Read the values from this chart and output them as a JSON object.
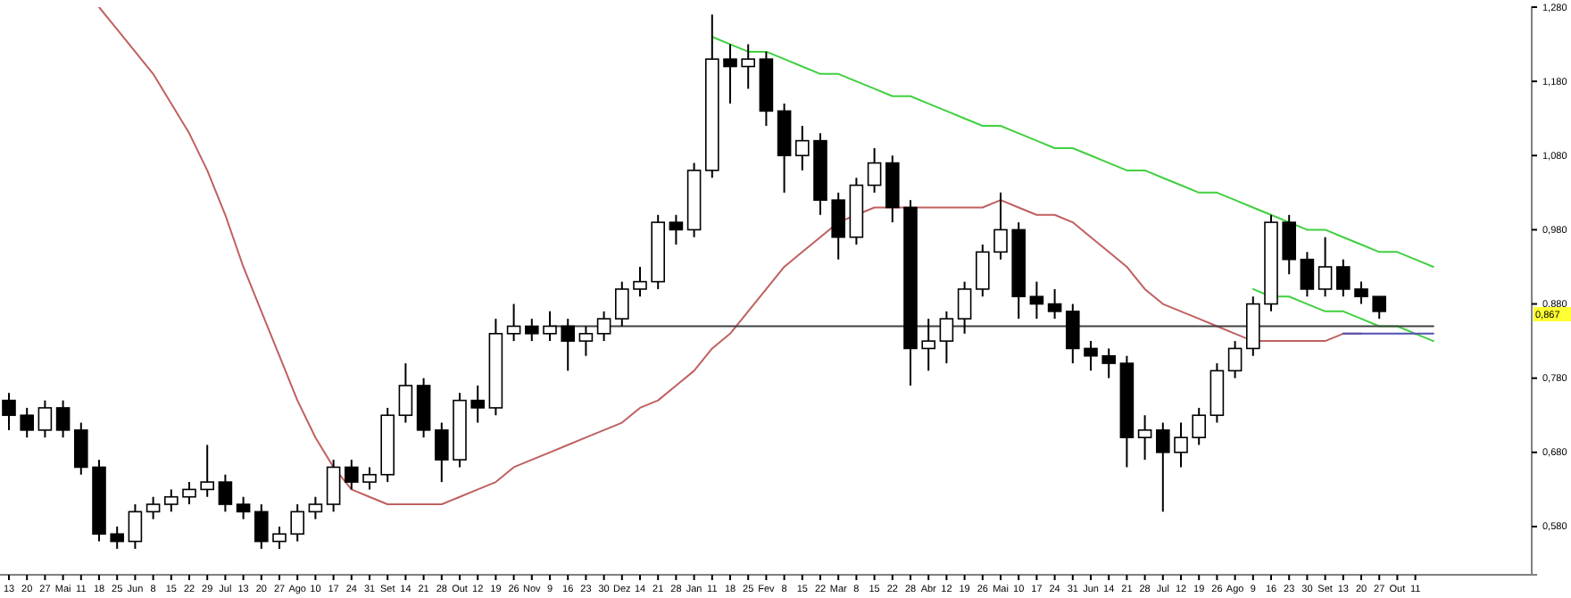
{
  "chart_data": {
    "type": "candlestick",
    "ylim": [
      0.515,
      1.28
    ],
    "yticks": [
      {
        "value": 0.58,
        "label": "0,580"
      },
      {
        "value": 0.68,
        "label": "0,680"
      },
      {
        "value": 0.78,
        "label": "0,780"
      },
      {
        "value": 0.88,
        "label": "0,880"
      },
      {
        "value": 0.98,
        "label": "0,980"
      },
      {
        "value": 1.08,
        "label": "1,080"
      },
      {
        "value": 1.18,
        "label": "1,180"
      },
      {
        "value": 1.28,
        "label": "1,280"
      }
    ],
    "categories": [
      "13",
      "20",
      "27",
      "Mai",
      "11",
      "18",
      "25",
      "Jun",
      "8",
      "15",
      "22",
      "29",
      "Jul",
      "13",
      "20",
      "27",
      "Ago",
      "10",
      "17",
      "24",
      "31",
      "Set",
      "14",
      "21",
      "28",
      "Out",
      "12",
      "19",
      "26",
      "Nov",
      "9",
      "16",
      "23",
      "30",
      "Dez",
      "14",
      "21",
      "28",
      "Jan",
      "11",
      "18",
      "25",
      "Fev",
      "8",
      "15",
      "22",
      "Mar",
      "8",
      "15",
      "22",
      "28",
      "Abr",
      "12",
      "19",
      "26",
      "Mai",
      "10",
      "17",
      "24",
      "31",
      "Jun",
      "14",
      "21",
      "28",
      "Jul",
      "12",
      "19",
      "26",
      "Ago",
      "9",
      "16",
      "23",
      "30",
      "Set",
      "13",
      "20",
      "27",
      "Out",
      "11",
      null,
      null,
      null,
      null,
      null,
      null
    ],
    "color": "#000000",
    "ohlc": [
      [
        0.75,
        0.76,
        0.71,
        0.73
      ],
      [
        0.73,
        0.74,
        0.7,
        0.71
      ],
      [
        0.71,
        0.75,
        0.7,
        0.74
      ],
      [
        0.74,
        0.75,
        0.7,
        0.71
      ],
      [
        0.71,
        0.72,
        0.65,
        0.66
      ],
      [
        0.66,
        0.67,
        0.56,
        0.57
      ],
      [
        0.57,
        0.58,
        0.55,
        0.56
      ],
      [
        0.56,
        0.61,
        0.55,
        0.6
      ],
      [
        0.6,
        0.62,
        0.59,
        0.61
      ],
      [
        0.61,
        0.63,
        0.6,
        0.62
      ],
      [
        0.62,
        0.64,
        0.61,
        0.63
      ],
      [
        0.63,
        0.69,
        0.62,
        0.64
      ],
      [
        0.64,
        0.65,
        0.6,
        0.61
      ],
      [
        0.61,
        0.62,
        0.59,
        0.6
      ],
      [
        0.6,
        0.61,
        0.55,
        0.56
      ],
      [
        0.56,
        0.58,
        0.55,
        0.57
      ],
      [
        0.57,
        0.61,
        0.56,
        0.6
      ],
      [
        0.6,
        0.62,
        0.59,
        0.61
      ],
      [
        0.61,
        0.67,
        0.6,
        0.66
      ],
      [
        0.66,
        0.67,
        0.63,
        0.64
      ],
      [
        0.64,
        0.66,
        0.63,
        0.65
      ],
      [
        0.65,
        0.74,
        0.64,
        0.73
      ],
      [
        0.73,
        0.8,
        0.72,
        0.77
      ],
      [
        0.77,
        0.78,
        0.7,
        0.71
      ],
      [
        0.71,
        0.72,
        0.64,
        0.67
      ],
      [
        0.67,
        0.76,
        0.66,
        0.75
      ],
      [
        0.75,
        0.77,
        0.72,
        0.74
      ],
      [
        0.74,
        0.86,
        0.73,
        0.84
      ],
      [
        0.84,
        0.88,
        0.83,
        0.85
      ],
      [
        0.85,
        0.86,
        0.83,
        0.84
      ],
      [
        0.84,
        0.87,
        0.83,
        0.85
      ],
      [
        0.85,
        0.86,
        0.79,
        0.83
      ],
      [
        0.83,
        0.85,
        0.81,
        0.84
      ],
      [
        0.84,
        0.87,
        0.83,
        0.86
      ],
      [
        0.86,
        0.91,
        0.85,
        0.9
      ],
      [
        0.9,
        0.93,
        0.89,
        0.91
      ],
      [
        0.91,
        1.0,
        0.9,
        0.99
      ],
      [
        0.99,
        1.0,
        0.96,
        0.98
      ],
      [
        0.98,
        1.07,
        0.97,
        1.06
      ],
      [
        1.06,
        1.27,
        1.05,
        1.21
      ],
      [
        1.21,
        1.23,
        1.15,
        1.2
      ],
      [
        1.2,
        1.23,
        1.17,
        1.21
      ],
      [
        1.21,
        1.22,
        1.12,
        1.14
      ],
      [
        1.14,
        1.15,
        1.03,
        1.08
      ],
      [
        1.08,
        1.12,
        1.06,
        1.1
      ],
      [
        1.1,
        1.11,
        1.0,
        1.02
      ],
      [
        1.02,
        1.03,
        0.94,
        0.97
      ],
      [
        0.97,
        1.05,
        0.96,
        1.04
      ],
      [
        1.04,
        1.09,
        1.03,
        1.07
      ],
      [
        1.07,
        1.08,
        0.99,
        1.01
      ],
      [
        1.01,
        1.02,
        0.77,
        0.82
      ],
      [
        0.82,
        0.86,
        0.79,
        0.83
      ],
      [
        0.83,
        0.87,
        0.8,
        0.86
      ],
      [
        0.86,
        0.91,
        0.84,
        0.9
      ],
      [
        0.9,
        0.96,
        0.89,
        0.95
      ],
      [
        0.95,
        1.03,
        0.94,
        0.98
      ],
      [
        0.98,
        0.99,
        0.86,
        0.89
      ],
      [
        0.89,
        0.91,
        0.86,
        0.88
      ],
      [
        0.88,
        0.9,
        0.86,
        0.87
      ],
      [
        0.87,
        0.88,
        0.8,
        0.82
      ],
      [
        0.82,
        0.83,
        0.79,
        0.81
      ],
      [
        0.81,
        0.82,
        0.78,
        0.8
      ],
      [
        0.8,
        0.81,
        0.66,
        0.7
      ],
      [
        0.7,
        0.73,
        0.67,
        0.71
      ],
      [
        0.71,
        0.72,
        0.6,
        0.68
      ],
      [
        0.68,
        0.72,
        0.66,
        0.7
      ],
      [
        0.7,
        0.74,
        0.69,
        0.73
      ],
      [
        0.73,
        0.8,
        0.72,
        0.79
      ],
      [
        0.79,
        0.83,
        0.78,
        0.82
      ],
      [
        0.82,
        0.89,
        0.81,
        0.88
      ],
      [
        0.88,
        1.0,
        0.87,
        0.99
      ],
      [
        0.99,
        1.0,
        0.92,
        0.94
      ],
      [
        0.94,
        0.95,
        0.89,
        0.9
      ],
      [
        0.9,
        0.97,
        0.89,
        0.93
      ],
      [
        0.93,
        0.94,
        0.89,
        0.9
      ],
      [
        0.9,
        0.91,
        0.88,
        0.89
      ],
      [
        0.89,
        0.89,
        0.86,
        0.87
      ],
      null,
      null,
      null,
      null,
      null,
      null,
      null,
      null
    ],
    "series": [
      {
        "type": "line",
        "color": "#c06060",
        "values": [
          null,
          null,
          null,
          null,
          null,
          1.28,
          1.25,
          1.22,
          1.19,
          1.15,
          1.11,
          1.06,
          1.0,
          0.93,
          0.87,
          0.81,
          0.75,
          0.7,
          0.66,
          0.63,
          0.62,
          0.61,
          0.61,
          0.61,
          0.61,
          0.62,
          0.63,
          0.64,
          0.66,
          0.67,
          0.68,
          0.69,
          0.7,
          0.71,
          0.72,
          0.74,
          0.75,
          0.77,
          0.79,
          0.82,
          0.84,
          0.87,
          0.9,
          0.93,
          0.95,
          0.97,
          0.99,
          1.0,
          1.01,
          1.01,
          1.01,
          1.01,
          1.01,
          1.01,
          1.01,
          1.02,
          1.01,
          1.0,
          1.0,
          0.99,
          0.97,
          0.95,
          0.93,
          0.9,
          0.88,
          0.87,
          0.86,
          0.85,
          0.84,
          0.83,
          0.83,
          0.83,
          0.83,
          0.83,
          0.84,
          0.84,
          null,
          null,
          null,
          null,
          null,
          null,
          null,
          null,
          null
        ]
      },
      {
        "type": "line",
        "color": "#40d040",
        "values": [
          null,
          null,
          null,
          null,
          null,
          null,
          null,
          null,
          null,
          null,
          null,
          null,
          null,
          null,
          null,
          null,
          null,
          null,
          null,
          null,
          null,
          null,
          null,
          null,
          null,
          null,
          null,
          null,
          null,
          null,
          null,
          null,
          null,
          null,
          null,
          null,
          null,
          null,
          null,
          1.24,
          1.23,
          1.22,
          1.22,
          1.21,
          1.2,
          1.19,
          1.19,
          1.18,
          1.17,
          1.16,
          1.16,
          1.15,
          1.14,
          1.13,
          1.12,
          1.12,
          1.11,
          1.1,
          1.09,
          1.09,
          1.08,
          1.07,
          1.06,
          1.06,
          1.05,
          1.04,
          1.03,
          1.03,
          1.02,
          1.01,
          1.0,
          0.99,
          0.98,
          0.98,
          0.97,
          0.96,
          0.95,
          0.95,
          0.94,
          0.93,
          null,
          null,
          null,
          null,
          null
        ]
      },
      {
        "type": "line",
        "color": "#40d040",
        "values": [
          null,
          null,
          null,
          null,
          null,
          null,
          null,
          null,
          null,
          null,
          null,
          null,
          null,
          null,
          null,
          null,
          null,
          null,
          null,
          null,
          null,
          null,
          null,
          null,
          null,
          null,
          null,
          null,
          null,
          null,
          null,
          null,
          null,
          null,
          null,
          null,
          null,
          null,
          null,
          null,
          null,
          null,
          null,
          null,
          null,
          null,
          null,
          null,
          null,
          null,
          null,
          null,
          null,
          null,
          null,
          null,
          null,
          null,
          null,
          null,
          null,
          null,
          null,
          null,
          null,
          null,
          null,
          null,
          null,
          0.9,
          0.89,
          0.89,
          0.88,
          0.87,
          0.87,
          0.86,
          0.85,
          0.85,
          0.84,
          0.83,
          null,
          null,
          null,
          null,
          null
        ]
      },
      {
        "type": "line",
        "color": "#404040",
        "values": [
          null,
          null,
          null,
          null,
          null,
          null,
          null,
          null,
          null,
          null,
          null,
          null,
          null,
          null,
          null,
          null,
          null,
          null,
          null,
          null,
          null,
          null,
          null,
          null,
          null,
          null,
          null,
          null,
          null,
          null,
          0.85,
          0.85,
          0.85,
          0.85,
          0.85,
          0.85,
          0.85,
          0.85,
          0.85,
          0.85,
          0.85,
          0.85,
          0.85,
          0.85,
          0.85,
          0.85,
          0.85,
          0.85,
          0.85,
          0.85,
          0.85,
          0.85,
          0.85,
          0.85,
          0.85,
          0.85,
          0.85,
          0.85,
          0.85,
          0.85,
          0.85,
          0.85,
          0.85,
          0.85,
          0.85,
          0.85,
          0.85,
          0.85,
          0.85,
          0.85,
          0.85,
          0.85,
          0.85,
          0.85,
          0.85,
          0.85,
          0.85,
          0.85,
          0.85,
          0.85,
          null,
          null,
          null,
          null,
          null
        ]
      },
      {
        "type": "line",
        "color": "#5050b0",
        "values": [
          null,
          null,
          null,
          null,
          null,
          null,
          null,
          null,
          null,
          null,
          null,
          null,
          null,
          null,
          null,
          null,
          null,
          null,
          null,
          null,
          null,
          null,
          null,
          null,
          null,
          null,
          null,
          null,
          null,
          null,
          null,
          null,
          null,
          null,
          null,
          null,
          null,
          null,
          null,
          null,
          null,
          null,
          null,
          null,
          null,
          null,
          null,
          null,
          null,
          null,
          null,
          null,
          null,
          null,
          null,
          null,
          null,
          null,
          null,
          null,
          null,
          null,
          null,
          null,
          null,
          null,
          null,
          null,
          null,
          null,
          null,
          null,
          null,
          null,
          0.84,
          0.84,
          0.84,
          0.84,
          0.84,
          0.84,
          null,
          null,
          null,
          null,
          null
        ]
      }
    ],
    "annotations": [
      "0,867"
    ]
  }
}
